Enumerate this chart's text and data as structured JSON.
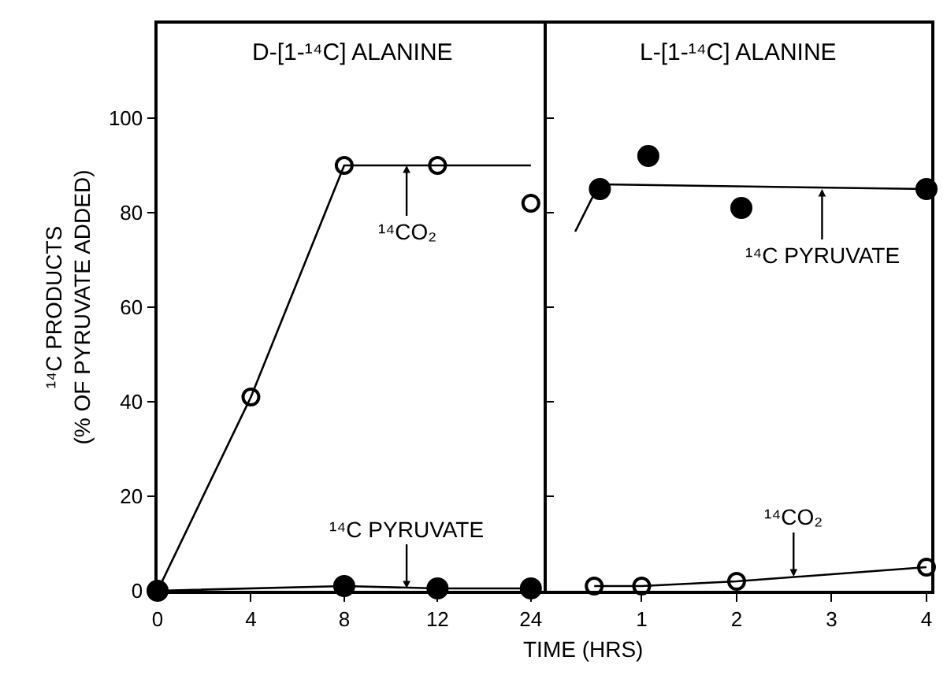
{
  "chart_data": [
    {
      "type": "line",
      "title": "D-[1-¹⁴C] ALANINE",
      "xlabel": "TIME (HRS)",
      "ylabel": "¹⁴C PRODUCTS\n(% OF PYRUVATE ADDED)",
      "categories": [
        "0",
        "4",
        "8",
        "12",
        "24"
      ],
      "ylim": [
        0,
        120
      ],
      "yticks": [
        0,
        20,
        40,
        60,
        80,
        100
      ],
      "marker": "circle",
      "series": [
        {
          "type": "scatter",
          "values": [
            0,
            41,
            90,
            90,
            82
          ],
          "color": "#000000"
        },
        {
          "values": [
            0,
            41,
            90,
            90,
            90
          ],
          "color": "#000000",
          "marker": "none"
        },
        {
          "values": [
            0,
            null,
            1,
            0.5,
            0.5
          ],
          "color": "#000000"
        }
      ],
      "annotations": [
        {
          "text": "¹⁴CO₂",
          "y": 90
        },
        {
          "text": "¹⁴C PYRUVATE",
          "y": 0.5
        }
      ]
    },
    {
      "type": "line",
      "title": "L-[1-¹⁴C] ALANINE",
      "xlim": [
        0,
        4.05
      ],
      "xticks": [
        1,
        2,
        3,
        4
      ],
      "ylim": [
        0,
        120
      ],
      "yticks": [
        0,
        20,
        40,
        60,
        80,
        100
      ],
      "tick_labels": "x",
      "marker": "circle",
      "series": [
        {
          "x": [
            0.5,
            1,
            2,
            4
          ],
          "values": [
            1,
            1,
            2,
            5
          ],
          "color": "#000000"
        },
        {
          "x": [
            0.3,
            0.55,
            4
          ],
          "values": [
            76,
            86,
            85
          ],
          "color": "#000000",
          "marker": "none"
        },
        {
          "type": "scatter",
          "x": [
            0.56,
            1.07,
            2.05,
            4
          ],
          "values": [
            85,
            92,
            81,
            85
          ],
          "color": "#000000"
        }
      ],
      "annotations": [
        {
          "text": "¹⁴C PYRUVATE",
          "x": 2.9,
          "y": 85
        },
        {
          "text": "¹⁴CO₂",
          "x": 2.6,
          "y": 3
        }
      ]
    }
  ]
}
